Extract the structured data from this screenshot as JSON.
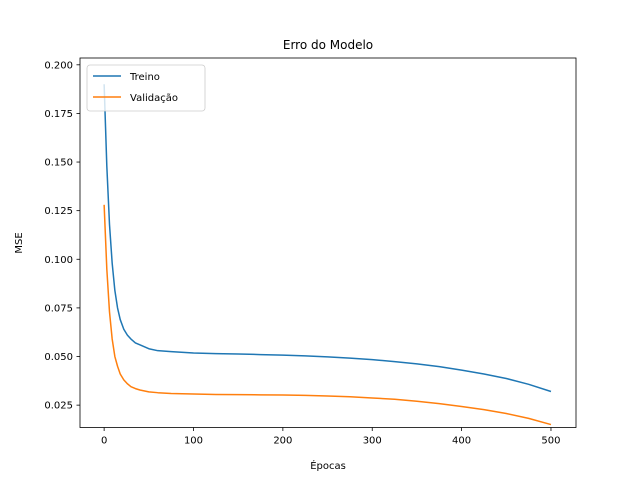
{
  "chart_data": {
    "type": "line",
    "title": "Erro do Modelo",
    "xlabel": "Épocas",
    "ylabel": "MSE",
    "xlim": [
      -27,
      528
    ],
    "ylim": [
      0.0135,
      0.2035
    ],
    "xticks": [
      0,
      100,
      200,
      300,
      400,
      500
    ],
    "xtick_labels": [
      "0",
      "100",
      "200",
      "300",
      "400",
      "500"
    ],
    "yticks": [
      0.025,
      0.05,
      0.075,
      0.1,
      0.125,
      0.15,
      0.175,
      0.2
    ],
    "ytick_labels": [
      "0.025",
      "0.050",
      "0.075",
      "0.100",
      "0.125",
      "0.150",
      "0.175",
      "0.200"
    ],
    "grid": false,
    "legend_position": "upper left",
    "series": [
      {
        "name": "Treino",
        "color": "#1f77b4",
        "x": [
          0,
          3,
          6,
          9,
          12,
          15,
          18,
          22,
          26,
          30,
          35,
          40,
          50,
          60,
          75,
          100,
          125,
          150,
          175,
          200,
          225,
          250,
          275,
          300,
          325,
          350,
          375,
          400,
          425,
          450,
          475,
          500
        ],
        "y": [
          0.19,
          0.148,
          0.118,
          0.098,
          0.084,
          0.075,
          0.069,
          0.064,
          0.061,
          0.059,
          0.057,
          0.056,
          0.054,
          0.053,
          0.0525,
          0.0518,
          0.0515,
          0.0513,
          0.051,
          0.0507,
          0.0503,
          0.0498,
          0.0492,
          0.0484,
          0.0474,
          0.0462,
          0.0448,
          0.043,
          0.041,
          0.0387,
          0.0357,
          0.032
        ]
      },
      {
        "name": "Validação",
        "color": "#ff7f0e",
        "x": [
          0,
          3,
          6,
          9,
          12,
          15,
          18,
          22,
          26,
          30,
          35,
          40,
          50,
          60,
          75,
          100,
          125,
          150,
          175,
          200,
          225,
          250,
          275,
          300,
          325,
          350,
          375,
          400,
          425,
          450,
          475,
          500
        ],
        "y": [
          0.128,
          0.095,
          0.073,
          0.059,
          0.05,
          0.045,
          0.041,
          0.038,
          0.036,
          0.0345,
          0.0335,
          0.0328,
          0.0318,
          0.0314,
          0.031,
          0.0307,
          0.0305,
          0.0304,
          0.0303,
          0.0302,
          0.03,
          0.0297,
          0.0293,
          0.0287,
          0.028,
          0.027,
          0.0258,
          0.0243,
          0.0227,
          0.0207,
          0.0182,
          0.015
        ]
      }
    ]
  }
}
